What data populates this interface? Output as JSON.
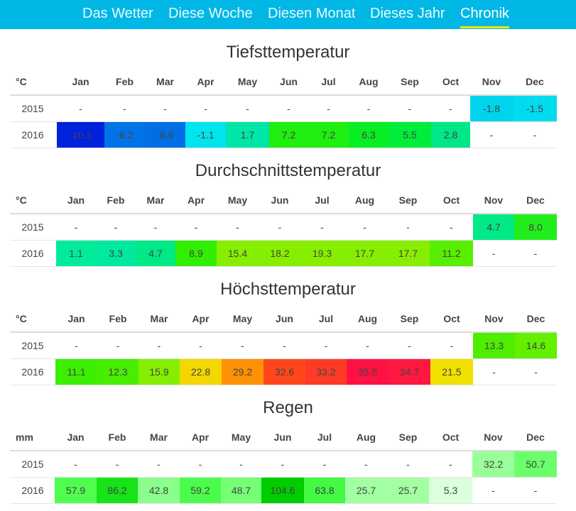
{
  "nav": {
    "tabs": [
      {
        "label": "Das Wetter",
        "active": false
      },
      {
        "label": "Diese Woche",
        "active": false
      },
      {
        "label": "Diesen Monat",
        "active": false
      },
      {
        "label": "Dieses Jahr",
        "active": false
      },
      {
        "label": "Chronik",
        "active": true
      }
    ],
    "bar_color": "#00b7e5",
    "active_underline_color": "#ffe600"
  },
  "months": [
    "Jan",
    "Feb",
    "Mar",
    "Apr",
    "May",
    "Jun",
    "Jul",
    "Aug",
    "Sep",
    "Oct",
    "Nov",
    "Dec"
  ],
  "sections": [
    {
      "title": "Tiefsttemperatur",
      "unit": "°C",
      "rows": [
        {
          "year": "2015",
          "values": [
            "-",
            "-",
            "-",
            "-",
            "-",
            "-",
            "-",
            "-",
            "-",
            "-",
            "-1.8",
            "-1.5"
          ]
        },
        {
          "year": "2016",
          "values": [
            "-10.1",
            "-6.2",
            "-6.6",
            "-1.1",
            "1.7",
            "7.2",
            "7.2",
            "6.3",
            "5.5",
            "2.8",
            "-",
            "-"
          ]
        }
      ]
    },
    {
      "title": "Durchschnittstemperatur",
      "unit": "°C",
      "rows": [
        {
          "year": "2015",
          "values": [
            "-",
            "-",
            "-",
            "-",
            "-",
            "-",
            "-",
            "-",
            "-",
            "-",
            "4.7",
            "8.0"
          ]
        },
        {
          "year": "2016",
          "values": [
            "1.1",
            "3.3",
            "4.7",
            "8.9",
            "15.4",
            "18.2",
            "19.3",
            "17.7",
            "17.7",
            "11.2",
            "-",
            "-"
          ]
        }
      ]
    },
    {
      "title": "Höchsttemperatur",
      "unit": "°C",
      "rows": [
        {
          "year": "2015",
          "values": [
            "-",
            "-",
            "-",
            "-",
            "-",
            "-",
            "-",
            "-",
            "-",
            "-",
            "13.3",
            "14.6"
          ]
        },
        {
          "year": "2016",
          "values": [
            "11.1",
            "12.3",
            "15.9",
            "22.8",
            "29.2",
            "32.6",
            "33.2",
            "35.5",
            "34.7",
            "21.5",
            "-",
            "-"
          ]
        }
      ]
    },
    {
      "title": "Regen",
      "unit": "mm",
      "rows": [
        {
          "year": "2015",
          "values": [
            "-",
            "-",
            "-",
            "-",
            "-",
            "-",
            "-",
            "-",
            "-",
            "-",
            "32.2",
            "50.7"
          ]
        },
        {
          "year": "2016",
          "values": [
            "57.9",
            "86.2",
            "42.8",
            "59.2",
            "48.7",
            "104.6",
            "63.8",
            "25.7",
            "25.7",
            "5.3",
            "-",
            "-"
          ]
        }
      ]
    }
  ]
}
